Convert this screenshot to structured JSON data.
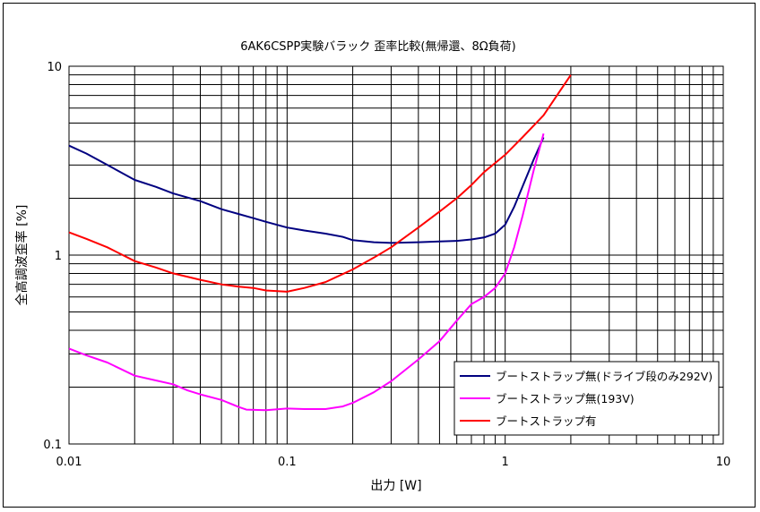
{
  "chart_data": {
    "type": "line",
    "title": "6AK6CSPP実験バラック 歪率比較(無帰還、8Ω負荷)",
    "xlabel": "出力 [W]",
    "ylabel": "全高調波歪率 [%]",
    "xscale": "log",
    "yscale": "log",
    "xlim": [
      0.01,
      10
    ],
    "ylim": [
      0.1,
      10
    ],
    "grid": true,
    "legend_position": "bottom-right",
    "x_ticks": [
      "0.01",
      "0.1",
      "1",
      "10"
    ],
    "y_ticks": [
      "0.1",
      "1",
      "10"
    ],
    "series": [
      {
        "name": "ブートストラップ無(ドライブ段のみ292V)",
        "color": "#000080",
        "points": [
          [
            0.01,
            3.8
          ],
          [
            0.012,
            3.45
          ],
          [
            0.015,
            3.0
          ],
          [
            0.02,
            2.5
          ],
          [
            0.025,
            2.3
          ],
          [
            0.03,
            2.12
          ],
          [
            0.04,
            1.93
          ],
          [
            0.05,
            1.75
          ],
          [
            0.06,
            1.65
          ],
          [
            0.07,
            1.57
          ],
          [
            0.08,
            1.5
          ],
          [
            0.1,
            1.4
          ],
          [
            0.12,
            1.35
          ],
          [
            0.15,
            1.3
          ],
          [
            0.18,
            1.25
          ],
          [
            0.2,
            1.2
          ],
          [
            0.25,
            1.17
          ],
          [
            0.3,
            1.16
          ],
          [
            0.4,
            1.17
          ],
          [
            0.5,
            1.18
          ],
          [
            0.6,
            1.19
          ],
          [
            0.7,
            1.21
          ],
          [
            0.8,
            1.24
          ],
          [
            0.9,
            1.3
          ],
          [
            1.0,
            1.45
          ],
          [
            1.1,
            1.8
          ],
          [
            1.2,
            2.3
          ],
          [
            1.35,
            3.2
          ],
          [
            1.5,
            4.2
          ]
        ]
      },
      {
        "name": "ブートストラップ無(193V)",
        "color": "#ff00ff",
        "points": [
          [
            0.01,
            0.32
          ],
          [
            0.012,
            0.295
          ],
          [
            0.015,
            0.27
          ],
          [
            0.02,
            0.23
          ],
          [
            0.025,
            0.217
          ],
          [
            0.03,
            0.207
          ],
          [
            0.035,
            0.192
          ],
          [
            0.04,
            0.183
          ],
          [
            0.05,
            0.171
          ],
          [
            0.06,
            0.157
          ],
          [
            0.065,
            0.152
          ],
          [
            0.08,
            0.151
          ],
          [
            0.1,
            0.154
          ],
          [
            0.12,
            0.153
          ],
          [
            0.15,
            0.153
          ],
          [
            0.18,
            0.158
          ],
          [
            0.2,
            0.165
          ],
          [
            0.25,
            0.188
          ],
          [
            0.3,
            0.215
          ],
          [
            0.4,
            0.28
          ],
          [
            0.5,
            0.35
          ],
          [
            0.6,
            0.45
          ],
          [
            0.7,
            0.55
          ],
          [
            0.8,
            0.6
          ],
          [
            0.9,
            0.67
          ],
          [
            1.0,
            0.8
          ],
          [
            1.1,
            1.1
          ],
          [
            1.2,
            1.6
          ],
          [
            1.35,
            2.8
          ],
          [
            1.5,
            4.4
          ]
        ]
      },
      {
        "name": "ブートストラップ有",
        "color": "#ff0000",
        "points": [
          [
            0.01,
            1.32
          ],
          [
            0.012,
            1.22
          ],
          [
            0.015,
            1.1
          ],
          [
            0.02,
            0.93
          ],
          [
            0.025,
            0.86
          ],
          [
            0.03,
            0.8
          ],
          [
            0.04,
            0.74
          ],
          [
            0.05,
            0.7
          ],
          [
            0.06,
            0.68
          ],
          [
            0.07,
            0.67
          ],
          [
            0.08,
            0.65
          ],
          [
            0.1,
            0.64
          ],
          [
            0.12,
            0.67
          ],
          [
            0.15,
            0.72
          ],
          [
            0.2,
            0.84
          ],
          [
            0.25,
            0.97
          ],
          [
            0.3,
            1.1
          ],
          [
            0.4,
            1.4
          ],
          [
            0.5,
            1.7
          ],
          [
            0.6,
            2.0
          ],
          [
            0.7,
            2.35
          ],
          [
            0.8,
            2.75
          ],
          [
            1.0,
            3.4
          ],
          [
            1.2,
            4.2
          ],
          [
            1.5,
            5.5
          ],
          [
            2.0,
            9.0
          ]
        ]
      }
    ]
  }
}
